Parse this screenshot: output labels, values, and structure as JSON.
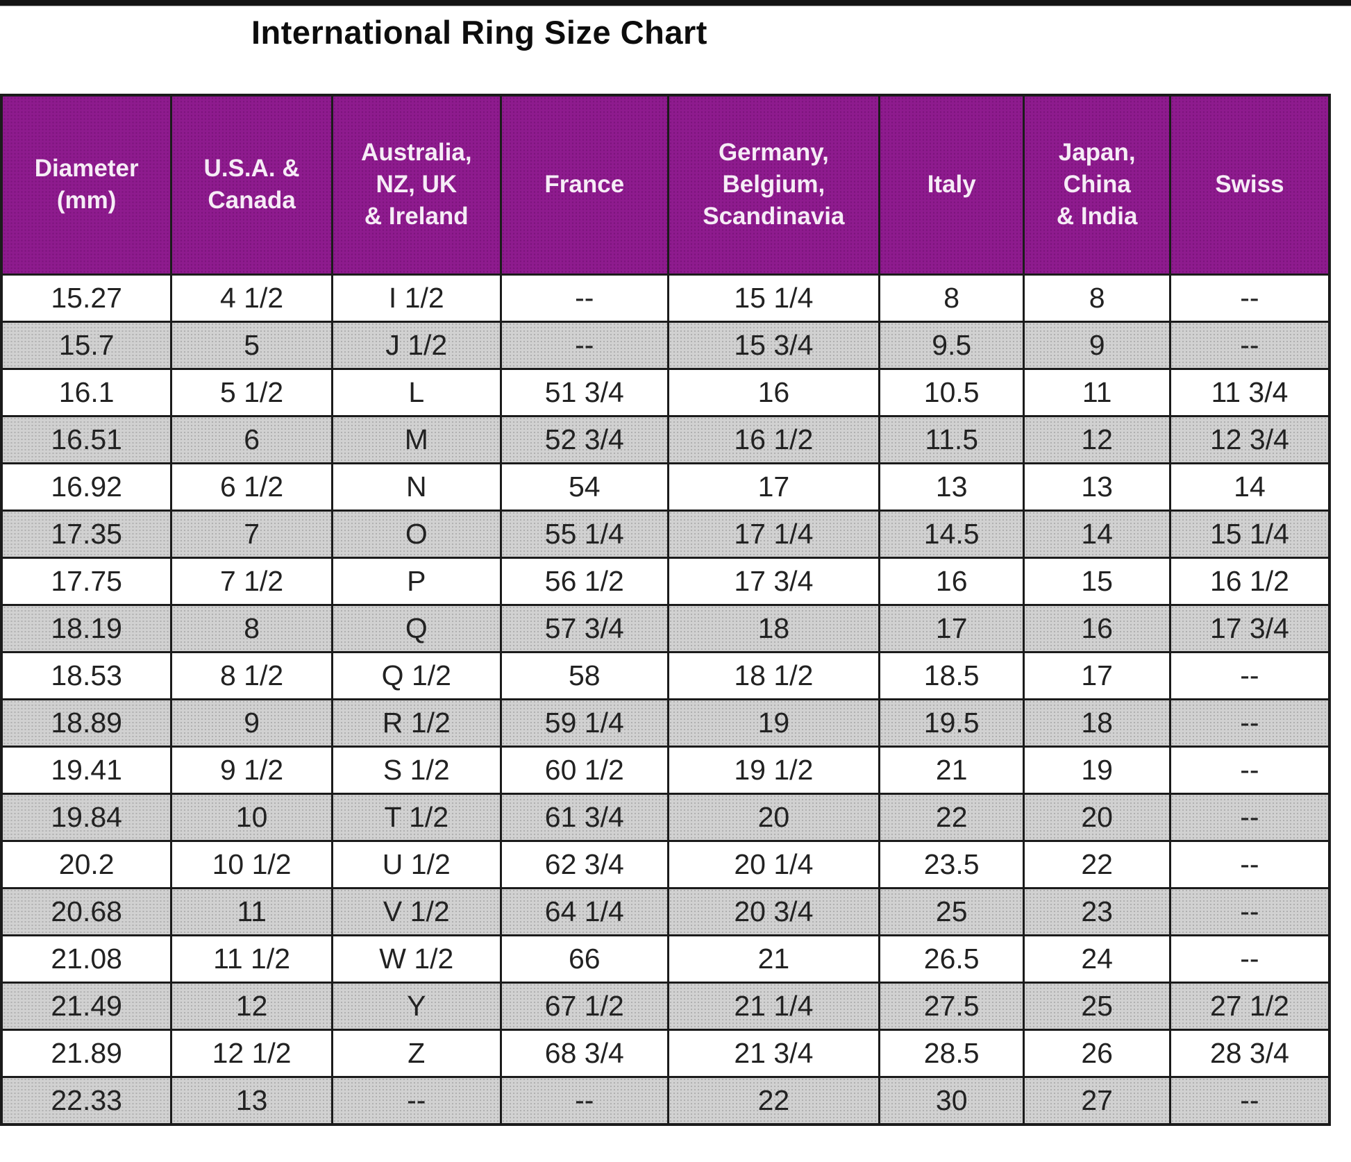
{
  "page_title": "International Ring Size Chart",
  "colors": {
    "top_bar": "#141414",
    "header_bg": "#8e1b8e",
    "header_text": "#f6ecf6",
    "alt_row_bg": "#d1d1d1",
    "border": "#1b1b1b",
    "cell_text": "#222222"
  },
  "chart_data": {
    "type": "table",
    "title": "International Ring Size Chart",
    "columns": [
      "Diameter\n(mm)",
      "U.S.A. &\nCanada",
      "Australia,\nNZ, UK\n& Ireland",
      "France",
      "Germany,\nBelgium,\nScandinavia",
      "Italy",
      "Japan,\nChina\n& India",
      "Swiss"
    ],
    "column_width_percents": [
      12.8,
      12.1,
      12.7,
      12.6,
      15.9,
      10.9,
      11.0,
      12.0
    ],
    "rows": [
      [
        "15.27",
        "4 1/2",
        "I 1/2",
        "--",
        "15 1/4",
        "8",
        "8",
        "--"
      ],
      [
        "15.7",
        "5",
        "J 1/2",
        "--",
        "15 3/4",
        "9.5",
        "9",
        "--"
      ],
      [
        "16.1",
        "5 1/2",
        "L",
        "51 3/4",
        "16",
        "10.5",
        "11",
        "11 3/4"
      ],
      [
        "16.51",
        "6",
        "M",
        "52 3/4",
        "16 1/2",
        "11.5",
        "12",
        "12 3/4"
      ],
      [
        "16.92",
        "6 1/2",
        "N",
        "54",
        "17",
        "13",
        "13",
        "14"
      ],
      [
        "17.35",
        "7",
        "O",
        "55 1/4",
        "17 1/4",
        "14.5",
        "14",
        "15 1/4"
      ],
      [
        "17.75",
        "7 1/2",
        "P",
        "56 1/2",
        "17 3/4",
        "16",
        "15",
        "16 1/2"
      ],
      [
        "18.19",
        "8",
        "Q",
        "57 3/4",
        "18",
        "17",
        "16",
        "17 3/4"
      ],
      [
        "18.53",
        "8 1/2",
        "Q 1/2",
        "58",
        "18 1/2",
        "18.5",
        "17",
        "--"
      ],
      [
        "18.89",
        "9",
        "R 1/2",
        "59 1/4",
        "19",
        "19.5",
        "18",
        "--"
      ],
      [
        "19.41",
        "9 1/2",
        "S 1/2",
        "60 1/2",
        "19 1/2",
        "21",
        "19",
        "--"
      ],
      [
        "19.84",
        "10",
        "T 1/2",
        "61 3/4",
        "20",
        "22",
        "20",
        "--"
      ],
      [
        "20.2",
        "10 1/2",
        "U 1/2",
        "62 3/4",
        "20 1/4",
        "23.5",
        "22",
        "--"
      ],
      [
        "20.68",
        "11",
        "V 1/2",
        "64 1/4",
        "20 3/4",
        "25",
        "23",
        "--"
      ],
      [
        "21.08",
        "11 1/2",
        "W 1/2",
        "66",
        "21",
        "26.5",
        "24",
        "--"
      ],
      [
        "21.49",
        "12",
        "Y",
        "67 1/2",
        "21 1/4",
        "27.5",
        "25",
        "27 1/2"
      ],
      [
        "21.89",
        "12 1/2",
        "Z",
        "68 3/4",
        "21 3/4",
        "28.5",
        "26",
        "28 3/4"
      ],
      [
        "22.33",
        "13",
        "--",
        "--",
        "22",
        "30",
        "27",
        "--"
      ]
    ],
    "layout_hints": {
      "row_striping": "alternating white and dotted gray, first data row white",
      "header_position": "top",
      "grid": true
    }
  }
}
